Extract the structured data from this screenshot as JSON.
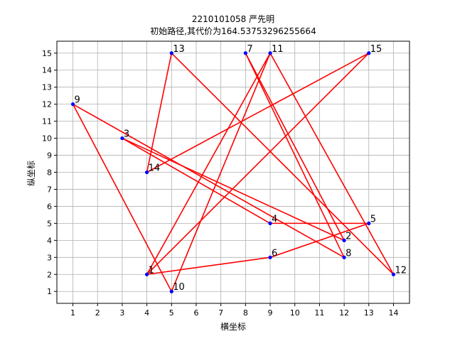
{
  "chart_data": {
    "type": "line",
    "title": "2210101058 严先明",
    "subtitle": "初始路径,其代价为164.53753296255664",
    "xlabel": "横坐标",
    "ylabel": "纵坐标",
    "xlim": [
      0.35,
      14.65
    ],
    "ylim": [
      0.3,
      15.7
    ],
    "xticks": [
      1,
      2,
      3,
      4,
      5,
      6,
      7,
      8,
      9,
      10,
      11,
      12,
      13,
      14
    ],
    "yticks": [
      1,
      2,
      3,
      4,
      5,
      6,
      7,
      8,
      9,
      10,
      11,
      12,
      13,
      14,
      15
    ],
    "grid": true,
    "line_color": "#ff0000",
    "marker_color": "#0000ff",
    "points": [
      {
        "label": "1",
        "x": 4,
        "y": 2
      },
      {
        "label": "2",
        "x": 12,
        "y": 4
      },
      {
        "label": "3",
        "x": 3,
        "y": 10
      },
      {
        "label": "4",
        "x": 9,
        "y": 5
      },
      {
        "label": "5",
        "x": 13,
        "y": 5
      },
      {
        "label": "6",
        "x": 9,
        "y": 3
      },
      {
        "label": "7",
        "x": 8,
        "y": 15
      },
      {
        "label": "8",
        "x": 12,
        "y": 3
      },
      {
        "label": "9",
        "x": 1,
        "y": 12
      },
      {
        "label": "10",
        "x": 5,
        "y": 1
      },
      {
        "label": "11",
        "x": 9,
        "y": 15
      },
      {
        "label": "12",
        "x": 14,
        "y": 2
      },
      {
        "label": "13",
        "x": 5,
        "y": 15
      },
      {
        "label": "14",
        "x": 4,
        "y": 8
      },
      {
        "label": "15",
        "x": 13,
        "y": 15
      }
    ],
    "route": [
      "1",
      "11",
      "12",
      "9",
      "10",
      "11"
    ],
    "edges": [
      [
        "1",
        "11"
      ],
      [
        "11",
        "12"
      ],
      [
        "12",
        "13"
      ],
      [
        "13",
        "14"
      ],
      [
        "14",
        "15"
      ],
      [
        "15",
        "1"
      ],
      [
        "1",
        "6"
      ],
      [
        "6",
        "5"
      ],
      [
        "5",
        "4"
      ],
      [
        "4",
        "3"
      ],
      [
        "3",
        "2"
      ],
      [
        "2",
        "7"
      ],
      [
        "7",
        "8"
      ],
      [
        "8",
        "9"
      ],
      [
        "9",
        "10"
      ],
      [
        "10",
        "11"
      ]
    ]
  }
}
